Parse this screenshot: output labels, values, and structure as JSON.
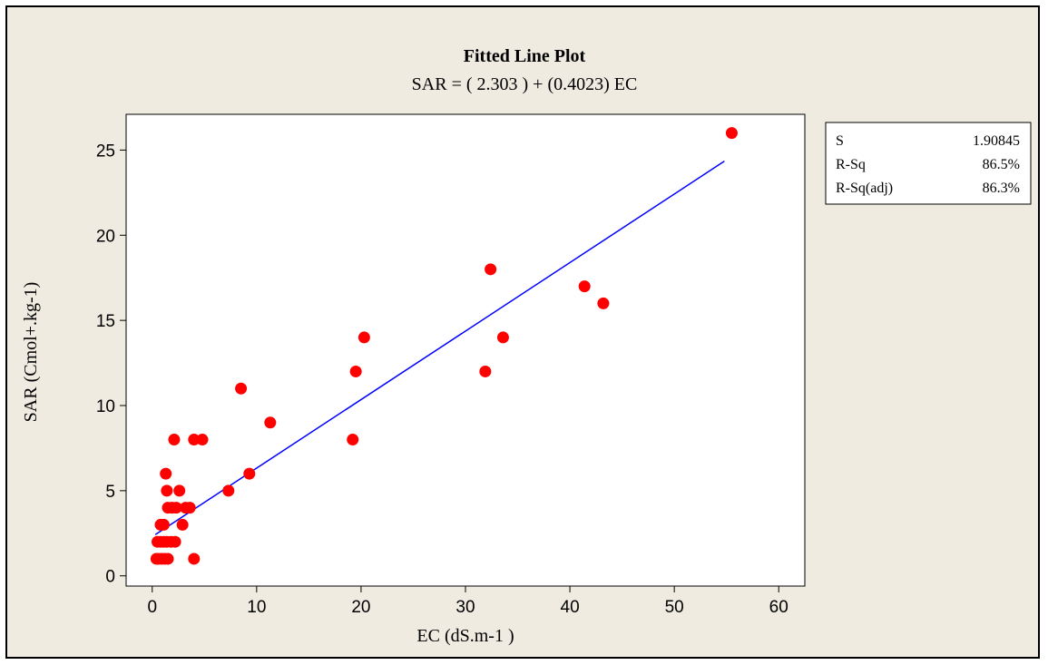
{
  "colors": {
    "background": "#efebe1",
    "plot_area": "#ffffff",
    "points": "#ff0000",
    "fit_line": "#0000ff",
    "text": "#000000"
  },
  "chart_data": {
    "type": "scatter",
    "title": "Fitted Line Plot",
    "subtitle": "SAR = ( 2.303 ) + (0.4023) EC",
    "xlabel": "EC (dS.m-1 )",
    "ylabel": "SAR (Cmol+.kg-1)",
    "xlim": [
      -2.5,
      62.5
    ],
    "ylim": [
      -0.6,
      27.1
    ],
    "xticks": [
      0,
      10,
      20,
      30,
      40,
      50,
      60
    ],
    "yticks": [
      0,
      5,
      10,
      15,
      20,
      25
    ],
    "grid": false,
    "fit": {
      "intercept": 2.303,
      "slope": 0.4023,
      "x_range": [
        0.3,
        54.8
      ]
    },
    "points": [
      {
        "x": 0.4,
        "y": 1
      },
      {
        "x": 0.6,
        "y": 1
      },
      {
        "x": 0.9,
        "y": 1
      },
      {
        "x": 1.2,
        "y": 1
      },
      {
        "x": 1.5,
        "y": 1
      },
      {
        "x": 0.5,
        "y": 2
      },
      {
        "x": 0.8,
        "y": 2
      },
      {
        "x": 1.1,
        "y": 2
      },
      {
        "x": 1.4,
        "y": 2
      },
      {
        "x": 1.8,
        "y": 2
      },
      {
        "x": 2.2,
        "y": 2
      },
      {
        "x": 0.8,
        "y": 3
      },
      {
        "x": 1.1,
        "y": 3
      },
      {
        "x": 1.4,
        "y": 5
      },
      {
        "x": 1.3,
        "y": 6
      },
      {
        "x": 1.5,
        "y": 4
      },
      {
        "x": 1.9,
        "y": 4
      },
      {
        "x": 2.3,
        "y": 4
      },
      {
        "x": 2.1,
        "y": 8
      },
      {
        "x": 2.9,
        "y": 3
      },
      {
        "x": 2.6,
        "y": 5
      },
      {
        "x": 3.2,
        "y": 4
      },
      {
        "x": 3.6,
        "y": 4
      },
      {
        "x": 4.0,
        "y": 1
      },
      {
        "x": 4.0,
        "y": 8
      },
      {
        "x": 4.8,
        "y": 8
      },
      {
        "x": 7.3,
        "y": 5
      },
      {
        "x": 8.5,
        "y": 11
      },
      {
        "x": 9.3,
        "y": 6
      },
      {
        "x": 11.3,
        "y": 9
      },
      {
        "x": 19.2,
        "y": 8
      },
      {
        "x": 19.5,
        "y": 12
      },
      {
        "x": 20.3,
        "y": 14
      },
      {
        "x": 31.9,
        "y": 12
      },
      {
        "x": 32.4,
        "y": 18
      },
      {
        "x": 33.6,
        "y": 14
      },
      {
        "x": 41.4,
        "y": 17
      },
      {
        "x": 43.2,
        "y": 16
      },
      {
        "x": 55.5,
        "y": 26
      }
    ]
  },
  "stats": {
    "rows": [
      {
        "label": "S",
        "value": "1.90845"
      },
      {
        "label": "R-Sq",
        "value": "86.5%"
      },
      {
        "label": "R-Sq(adj)",
        "value": "86.3%"
      }
    ]
  }
}
